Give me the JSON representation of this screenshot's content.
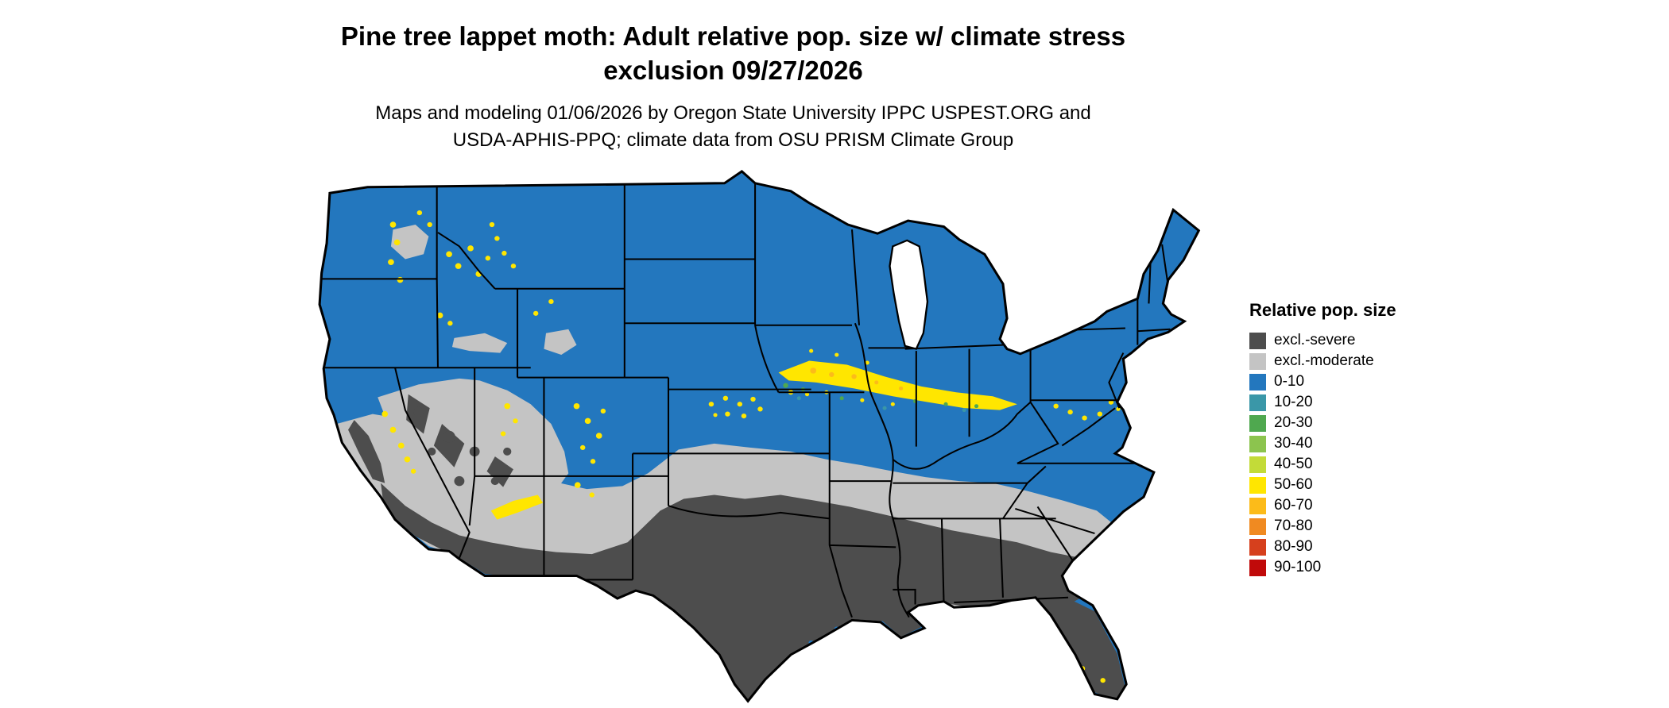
{
  "title": {
    "line1": "Pine tree lappet moth: Adult relative pop. size w/ climate stress",
    "line2": "exclusion 09/27/2026"
  },
  "subtitle": {
    "line1": "Maps and modeling 01/06/2026 by Oregon State University IPPC USPEST.ORG and",
    "line2": "USDA-APHIS-PPQ; climate data from OSU PRISM Climate Group"
  },
  "legend": {
    "title": "Relative pop. size",
    "items": [
      {
        "label": "excl.-severe",
        "color": "#4D4D4D"
      },
      {
        "label": "excl.-moderate",
        "color": "#C4C4C4"
      },
      {
        "label": "0-10",
        "color": "#2377BE"
      },
      {
        "label": "10-20",
        "color": "#3A97A8"
      },
      {
        "label": "20-30",
        "color": "#4FA84F"
      },
      {
        "label": "30-40",
        "color": "#8CC44E"
      },
      {
        "label": "40-50",
        "color": "#C3DB38"
      },
      {
        "label": "50-60",
        "color": "#FFE600"
      },
      {
        "label": "60-70",
        "color": "#FCBB19"
      },
      {
        "label": "70-80",
        "color": "#F08A21"
      },
      {
        "label": "80-90",
        "color": "#D6401D"
      },
      {
        "label": "90-100",
        "color": "#C00A0A"
      }
    ]
  },
  "map": {
    "region": "Continental United States",
    "background": "#FFFFFF",
    "border_color": "#000000",
    "colors": {
      "base": "#2377BE",
      "excl_severe": "#4D4D4D",
      "excl_moderate": "#C4C4C4",
      "band_10_20": "#3A97A8",
      "band_20_30": "#4FA84F",
      "band_30_40": "#8CC44E",
      "band_40_50": "#C3DB38",
      "band_50_60": "#FFE600",
      "band_60_70": "#FCBB19",
      "lake": "#FFFFFF"
    }
  },
  "chart_data": {
    "type": "heatmap",
    "title": "Pine tree lappet moth: Adult relative pop. size w/ climate stress exclusion 09/27/2026",
    "legend_title": "Relative pop. size",
    "classes": [
      "excl.-severe",
      "excl.-moderate",
      "0-10",
      "10-20",
      "20-30",
      "30-40",
      "40-50",
      "50-60",
      "60-70",
      "70-80",
      "80-90",
      "90-100"
    ],
    "class_colors": [
      "#4D4D4D",
      "#C4C4C4",
      "#2377BE",
      "#3A97A8",
      "#4FA84F",
      "#8CC44E",
      "#C3DB38",
      "#FFE600",
      "#FCBB19",
      "#F08A21",
      "#D6401D",
      "#C00A0A"
    ],
    "regions": [
      {
        "area": "Southern US: Texas, s. Oklahoma, Louisiana, s. Arkansas, Mississippi, Alabama, Georgia, Florida, s. Arizona/New Mexico, s. California, s. Nevada",
        "class": "excl.-severe"
      },
      {
        "area": "Transition band: central California, Great Basin (Nevada/Utah), n. Arizona/New Mexico, s. Kansas, s. Missouri, n. Arkansas, Tennessee, n. Mississippi/Alabama/Georgia, South Carolina",
        "class": "excl.-moderate"
      },
      {
        "area": "Northern US: Pacific Northwest, n. Rockies, n. Plains, upper Midwest, Great Lakes, Northeast, Ohio Valley, mid-Atlantic, coastal Carolinas",
        "class": "0-10"
      },
      {
        "area": "Corn Belt band from c. Iowa through Illinois, Indiana, Ohio; speckled yellow in western mountains (Cascades, Sierra Nevada, Idaho/Montana/Utah/Colorado ranges) and s. Nebraska / n. Kansas",
        "class": "40-50 to 60-70"
      }
    ]
  }
}
